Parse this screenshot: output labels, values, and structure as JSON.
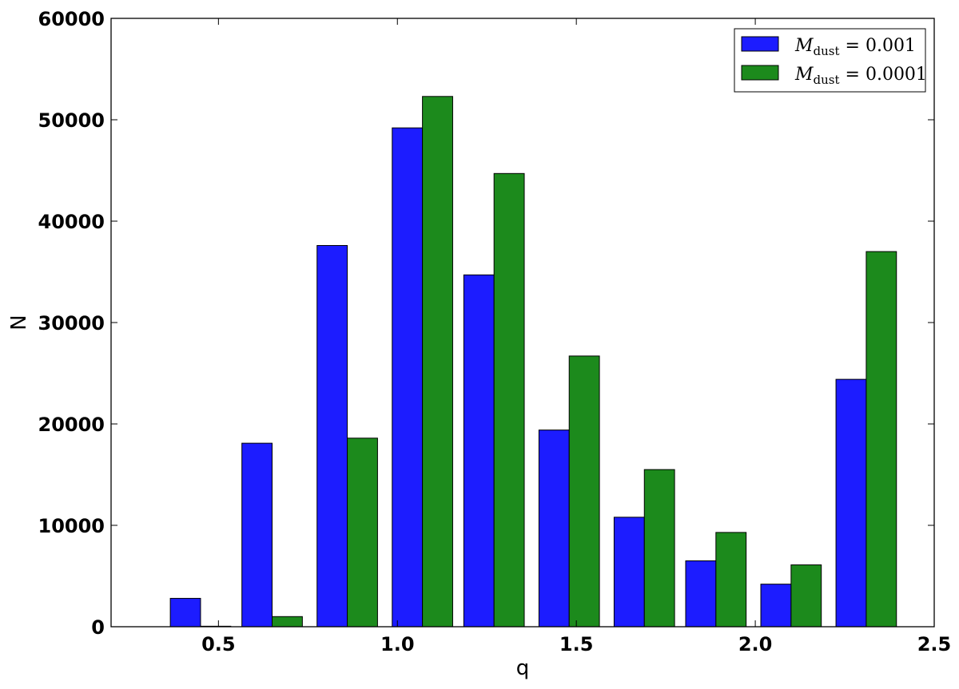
{
  "chart_data": {
    "type": "bar",
    "x": [
      0.45,
      0.65,
      0.86,
      1.07,
      1.27,
      1.48,
      1.69,
      1.89,
      2.1,
      2.31
    ],
    "series": [
      {
        "name": "M_dust = 0.001",
        "legend_main": "M",
        "legend_sub": "dust",
        "legend_rest": " = 0.001",
        "color": "#1c1cff",
        "values": [
          2800,
          18100,
          37600,
          49200,
          34700,
          19400,
          10800,
          6500,
          4200,
          24400
        ]
      },
      {
        "name": "M_dust = 0.0001",
        "legend_main": "M",
        "legend_sub": "dust",
        "legend_rest": " = 0.0001",
        "color": "#1c8a1c",
        "values": [
          50,
          1000,
          18600,
          52300,
          44700,
          26700,
          15500,
          9300,
          6100,
          37000
        ]
      }
    ],
    "xlabel": "q",
    "ylabel": "N",
    "xlim": [
      0.2,
      2.5
    ],
    "ylim": [
      0,
      60000
    ],
    "xticks": [
      "0.5",
      "1.0",
      "1.5",
      "2.0",
      "2.5"
    ],
    "xtick_values": [
      0.5,
      1.0,
      1.5,
      2.0,
      2.5
    ],
    "yticks": [
      "0",
      "10000",
      "20000",
      "30000",
      "40000",
      "50000",
      "60000"
    ],
    "ytick_values": [
      0,
      10000,
      20000,
      30000,
      40000,
      50000,
      60000
    ],
    "grid": false,
    "legend_position": "top-right"
  }
}
